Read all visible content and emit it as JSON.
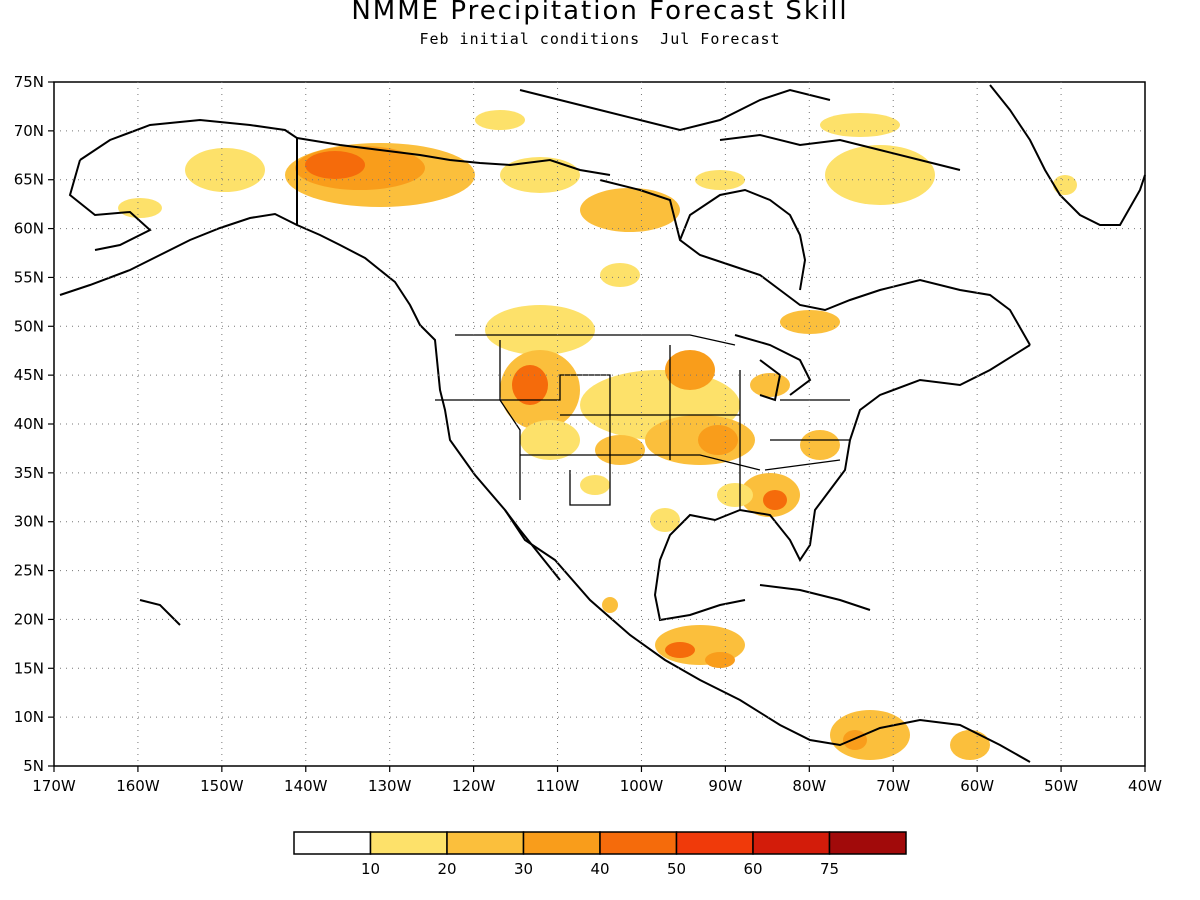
{
  "title": "NMME Precipitation Forecast Skill",
  "subtitle": "Feb initial conditions  Jul Forecast",
  "map": {
    "lat_labels": [
      "75N",
      "70N",
      "65N",
      "60N",
      "55N",
      "50N",
      "45N",
      "40N",
      "35N",
      "30N",
      "25N",
      "20N",
      "15N",
      "10N",
      "5N"
    ],
    "lon_labels": [
      "170W",
      "160W",
      "150W",
      "140W",
      "130W",
      "120W",
      "110W",
      "100W",
      "90W",
      "80W",
      "70W",
      "60W",
      "50W",
      "40W"
    ],
    "gridlines": "dotted"
  },
  "legend": {
    "labels": [
      "10",
      "20",
      "30",
      "40",
      "50",
      "60",
      "75"
    ],
    "colors": [
      "#ffffff",
      "#fde16a",
      "#fbbf3c",
      "#f99d1b",
      "#f56b0b",
      "#f03a0a",
      "#d31c0a",
      "#a10a0a"
    ]
  }
}
